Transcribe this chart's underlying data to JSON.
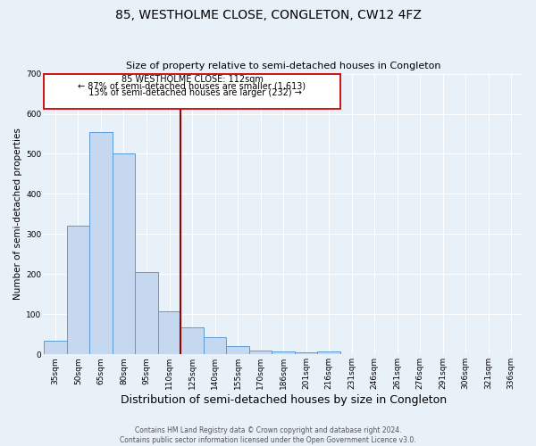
{
  "title": "85, WESTHOLME CLOSE, CONGLETON, CW12 4FZ",
  "subtitle": "Size of property relative to semi-detached houses in Congleton",
  "xlabel": "Distribution of semi-detached houses by size in Congleton",
  "ylabel": "Number of semi-detached properties",
  "footer_line1": "Contains HM Land Registry data © Crown copyright and database right 2024.",
  "footer_line2": "Contains public sector information licensed under the Open Government Licence v3.0.",
  "categories": [
    "35sqm",
    "50sqm",
    "65sqm",
    "80sqm",
    "95sqm",
    "110sqm",
    "125sqm",
    "140sqm",
    "155sqm",
    "170sqm",
    "186sqm",
    "201sqm",
    "216sqm",
    "231sqm",
    "246sqm",
    "261sqm",
    "276sqm",
    "291sqm",
    "306sqm",
    "321sqm",
    "336sqm"
  ],
  "values": [
    33,
    320,
    555,
    500,
    205,
    107,
    68,
    44,
    20,
    10,
    7,
    5,
    7,
    0,
    0,
    0,
    0,
    0,
    0,
    0,
    0
  ],
  "bar_color": "#c5d8f0",
  "bar_edge_color": "#5b9bd5",
  "ylim": [
    0,
    700
  ],
  "yticks": [
    0,
    100,
    200,
    300,
    400,
    500,
    600,
    700
  ],
  "property_line_label": "85 WESTHOLME CLOSE: 112sqm",
  "smaller_pct": "87%",
  "smaller_count": "1,613",
  "larger_pct": "13%",
  "larger_count": "232",
  "annotation_box_color": "#cc0000",
  "vline_color": "#990000",
  "bg_color": "#e8f0f8",
  "grid_color": "#ffffff",
  "title_fontsize": 10,
  "subtitle_fontsize": 8,
  "xlabel_fontsize": 8,
  "ylabel_fontsize": 7.5,
  "tick_fontsize": 6.5,
  "footer_fontsize": 5.5,
  "annot_fontsize": 7
}
